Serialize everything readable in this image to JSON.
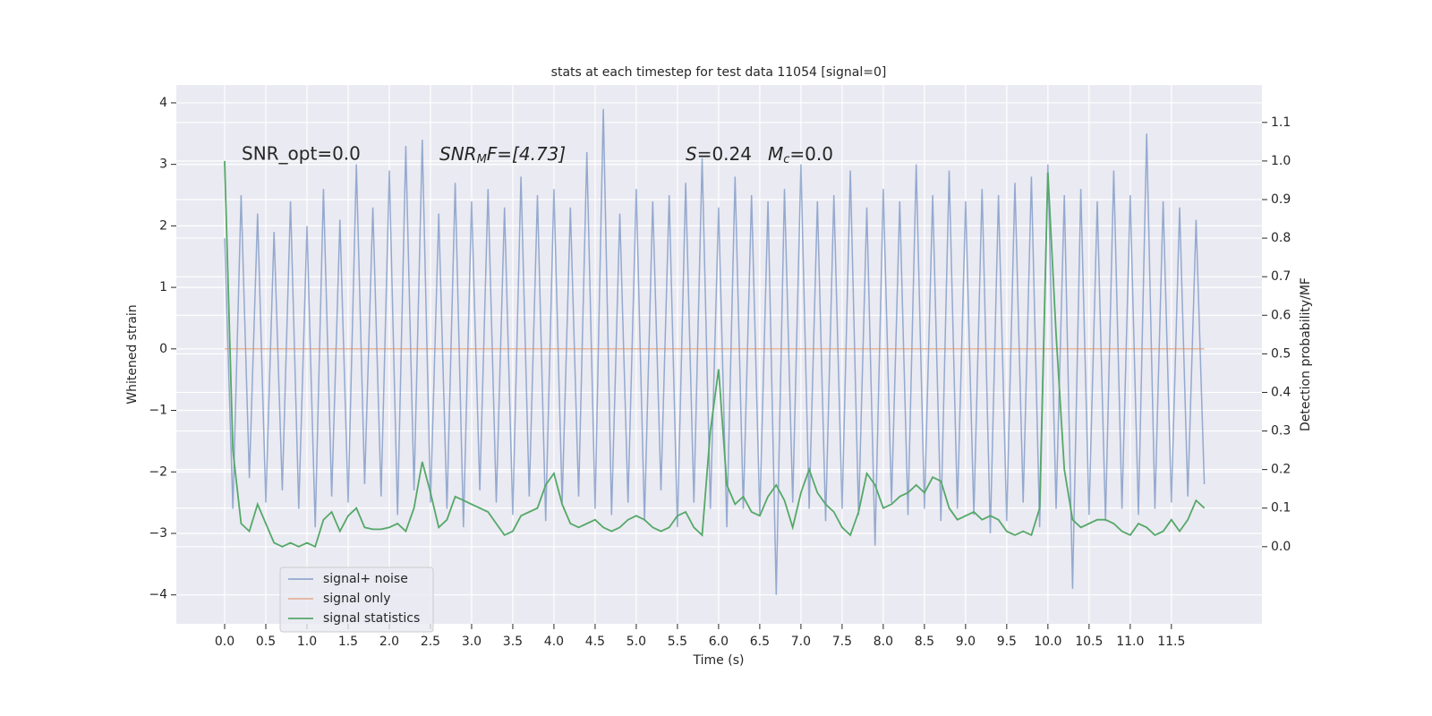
{
  "chart_data": {
    "type": "line",
    "title": "stats at each timestep for test data 11054 [signal=0]",
    "xlabel": "Time (s)",
    "ylabel": "Whitened strain",
    "y2label": "Detection probability/MF",
    "annotations": [
      [
        "SNR_opt=0.0"
      ],
      [
        "SNR",
        "M",
        "F=[4.73]"
      ],
      [
        "S",
        "=0.24",
        "M",
        "c",
        "=0.0"
      ]
    ],
    "xlim": [
      -0.587,
      12.6
    ],
    "ylim": [
      -4.47,
      4.29
    ],
    "y2lim": [
      -0.2,
      1.197
    ],
    "xticks": [
      {
        "value": 0,
        "label": "0.0"
      },
      {
        "value": 0.5,
        "label": "0.5"
      },
      {
        "value": 1,
        "label": "1.0"
      },
      {
        "value": 1.5,
        "label": "1.5"
      },
      {
        "value": 2,
        "label": "2.0"
      },
      {
        "value": 2.5,
        "label": "2.5"
      },
      {
        "value": 3,
        "label": "3.0"
      },
      {
        "value": 3.5,
        "label": "3.5"
      },
      {
        "value": 4,
        "label": "4.0"
      },
      {
        "value": 4.5,
        "label": "4.5"
      },
      {
        "value": 5,
        "label": "5.0"
      },
      {
        "value": 5.5,
        "label": "5.5"
      },
      {
        "value": 6,
        "label": "6.0"
      },
      {
        "value": 6.5,
        "label": "6.5"
      },
      {
        "value": 7,
        "label": "7.0"
      },
      {
        "value": 7.5,
        "label": "7.5"
      },
      {
        "value": 8,
        "label": "8.0"
      },
      {
        "value": 8.5,
        "label": "8.5"
      },
      {
        "value": 9,
        "label": "9.0"
      },
      {
        "value": 9.5,
        "label": "9.5"
      },
      {
        "value": 10,
        "label": "10.0"
      },
      {
        "value": 10.5,
        "label": "10.5"
      },
      {
        "value": 11,
        "label": "11.0"
      },
      {
        "value": 11.5,
        "label": "11.5"
      }
    ],
    "yticks": [
      {
        "value": -4,
        "label": "−4"
      },
      {
        "value": -3,
        "label": "−3"
      },
      {
        "value": -2,
        "label": "−2"
      },
      {
        "value": -1,
        "label": "−1"
      },
      0,
      1,
      2,
      3,
      4
    ],
    "y2ticks": [
      {
        "value": 0,
        "label": "0.0"
      },
      {
        "value": 0.1,
        "label": "0.1"
      },
      {
        "value": 0.2,
        "label": "0.2"
      },
      {
        "value": 0.3,
        "label": "0.3"
      },
      {
        "value": 0.4,
        "label": "0.4"
      },
      {
        "value": 0.5,
        "label": "0.5"
      },
      {
        "value": 0.6,
        "label": "0.6"
      },
      {
        "value": 0.7,
        "label": "0.7"
      },
      {
        "value": 0.8,
        "label": "0.8"
      },
      {
        "value": 0.9,
        "label": "0.9"
      },
      {
        "value": 1,
        "label": "1.0"
      },
      {
        "value": 1.1,
        "label": "1.1"
      }
    ],
    "grid": true,
    "legend": "lower left",
    "x": [
      0,
      0.1,
      0.2,
      0.3,
      0.4,
      0.5,
      0.6,
      0.7,
      0.8,
      0.9,
      1,
      1.1,
      1.2,
      1.3,
      1.4,
      1.5,
      1.6,
      1.7,
      1.8,
      1.9,
      2,
      2.1,
      2.2,
      2.3,
      2.4,
      2.5,
      2.6,
      2.7,
      2.8,
      2.9,
      3,
      3.1,
      3.2,
      3.3,
      3.4,
      3.5,
      3.6,
      3.7,
      3.8,
      3.9,
      4,
      4.1,
      4.2,
      4.3,
      4.4,
      4.5,
      4.6,
      4.7,
      4.8,
      4.9,
      5,
      5.1,
      5.2,
      5.3,
      5.4,
      5.5,
      5.6,
      5.7,
      5.8,
      5.9,
      6,
      6.1,
      6.2,
      6.3,
      6.4,
      6.5,
      6.6,
      6.7,
      6.8,
      6.9,
      7,
      7.1,
      7.2,
      7.3,
      7.4,
      7.5,
      7.6,
      7.7,
      7.8,
      7.9,
      8,
      8.1,
      8.2,
      8.3,
      8.4,
      8.5,
      8.6,
      8.7,
      8.8,
      8.9,
      9,
      9.1,
      9.2,
      9.3,
      9.4,
      9.5,
      9.6,
      9.7,
      9.8,
      9.9,
      10,
      10.1,
      10.2,
      10.3,
      10.4,
      10.5,
      10.6,
      10.7,
      10.8,
      10.9,
      11,
      11.1,
      11.2,
      11.3,
      11.4,
      11.5,
      11.6,
      11.7,
      11.8,
      11.9
    ],
    "series": [
      {
        "name": "signal+ noise",
        "color": "#4c72b0",
        "values": [
          1.8,
          -2.6,
          2.5,
          -2.1,
          2.2,
          -2.5,
          1.9,
          -2.3,
          2.4,
          -2.6,
          2.0,
          -2.9,
          2.6,
          -2.4,
          2.1,
          -2.5,
          3.0,
          -2.2,
          2.3,
          -2.4,
          2.9,
          -2.7,
          3.3,
          -2.3,
          3.4,
          -2.5,
          2.2,
          -2.6,
          2.7,
          -2.9,
          2.4,
          -2.3,
          2.6,
          -2.5,
          2.3,
          -2.7,
          2.8,
          -2.4,
          2.5,
          -2.8,
          2.6,
          -2.5,
          2.3,
          -2.4,
          3.2,
          -2.6,
          3.9,
          -2.7,
          2.2,
          -2.5,
          2.6,
          -2.8,
          2.4,
          -2.3,
          2.5,
          -2.9,
          2.7,
          -2.5,
          3.1,
          -2.6,
          2.3,
          -2.9,
          2.8,
          -2.6,
          2.5,
          -2.7,
          2.4,
          -4.0,
          2.6,
          -2.5,
          3.0,
          -2.6,
          2.4,
          -2.8,
          2.5,
          -2.6,
          2.9,
          -2.7,
          2.3,
          -3.2,
          2.6,
          -2.5,
          2.4,
          -2.7,
          3.0,
          -2.6,
          2.5,
          -2.8,
          2.9,
          -2.6,
          2.4,
          -2.7,
          2.6,
          -3.0,
          2.5,
          -2.8,
          2.7,
          -2.5,
          2.8,
          -2.9,
          3.0,
          -2.6,
          2.5,
          -3.9,
          2.6,
          -2.7,
          2.4,
          -2.8,
          2.9,
          -2.6,
          2.5,
          -2.7,
          3.5,
          -2.6,
          2.4,
          -2.5,
          2.3,
          -2.4,
          2.1,
          -2.2
        ]
      },
      {
        "name": "signal only",
        "color": "#dd8452",
        "values": [
          0,
          0,
          0,
          0,
          0,
          0,
          0,
          0,
          0,
          0,
          0,
          0,
          0,
          0,
          0,
          0,
          0,
          0,
          0,
          0,
          0,
          0,
          0,
          0,
          0,
          0,
          0,
          0,
          0,
          0,
          0,
          0,
          0,
          0,
          0,
          0,
          0,
          0,
          0,
          0,
          0,
          0,
          0,
          0,
          0,
          0,
          0,
          0,
          0,
          0,
          0,
          0,
          0,
          0,
          0,
          0,
          0,
          0,
          0,
          0,
          0,
          0,
          0,
          0,
          0,
          0,
          0,
          0,
          0,
          0,
          0,
          0,
          0,
          0,
          0,
          0,
          0,
          0,
          0,
          0,
          0,
          0,
          0,
          0,
          0,
          0,
          0,
          0,
          0,
          0,
          0,
          0,
          0,
          0,
          0,
          0,
          0,
          0,
          0,
          0,
          0,
          0,
          0,
          0,
          0,
          0,
          0,
          0,
          0,
          0,
          0,
          0,
          0,
          0,
          0,
          0,
          0,
          0,
          0,
          0
        ]
      },
      {
        "name": "signal statistics",
        "color": "#55a868",
        "axis": "y2",
        "values": [
          1.0,
          0.25,
          0.06,
          0.04,
          0.11,
          0.06,
          0.01,
          0.0,
          0.01,
          0.0,
          0.01,
          0.0,
          0.07,
          0.09,
          0.04,
          0.08,
          0.1,
          0.05,
          0.045,
          0.045,
          0.05,
          0.06,
          0.04,
          0.1,
          0.22,
          0.14,
          0.05,
          0.07,
          0.13,
          0.12,
          0.11,
          0.1,
          0.09,
          0.06,
          0.03,
          0.04,
          0.08,
          0.09,
          0.1,
          0.16,
          0.19,
          0.11,
          0.06,
          0.05,
          0.06,
          0.07,
          0.05,
          0.04,
          0.05,
          0.07,
          0.08,
          0.07,
          0.05,
          0.04,
          0.05,
          0.08,
          0.09,
          0.05,
          0.03,
          0.3,
          0.46,
          0.16,
          0.11,
          0.13,
          0.09,
          0.08,
          0.13,
          0.16,
          0.12,
          0.05,
          0.14,
          0.2,
          0.14,
          0.11,
          0.09,
          0.05,
          0.03,
          0.09,
          0.19,
          0.16,
          0.1,
          0.11,
          0.13,
          0.14,
          0.16,
          0.14,
          0.18,
          0.17,
          0.1,
          0.07,
          0.08,
          0.09,
          0.07,
          0.08,
          0.07,
          0.04,
          0.03,
          0.04,
          0.03,
          0.1,
          0.97,
          0.55,
          0.2,
          0.07,
          0.05,
          0.06,
          0.07,
          0.07,
          0.06,
          0.04,
          0.03,
          0.06,
          0.05,
          0.03,
          0.04,
          0.07,
          0.04,
          0.07,
          0.12,
          0.1
        ]
      }
    ]
  }
}
